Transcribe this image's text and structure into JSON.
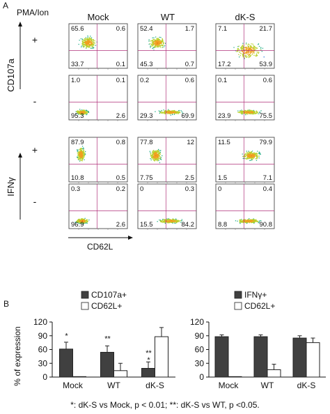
{
  "figure": {
    "panel_a_label": "A",
    "panel_b_label": "B",
    "stim_label": "PMA/Ion",
    "columns": [
      "Mock",
      "WT",
      "dK-S"
    ],
    "row_signs": [
      "+",
      "-",
      "+",
      "-"
    ],
    "y_axis_top": "CD107a",
    "y_axis_bottom": "IFNγ",
    "x_axis": "CD62L",
    "footnote": "*: dK-S vs Mock, p < 0.01; **: dK-S vs WT, p <0.05."
  },
  "flow_panels": [
    [
      {
        "ul": "65.6",
        "ur": "0.6",
        "ll": "33.7",
        "lr": "0.1",
        "pattern": "cd107_hi"
      },
      {
        "ul": "52.4",
        "ur": "1.7",
        "ll": "45.3",
        "lr": "0.7",
        "pattern": "cd107_hi"
      },
      {
        "ul": "7.1",
        "ur": "21.7",
        "ll": "17.2",
        "lr": "53.9",
        "pattern": "spread"
      }
    ],
    [
      {
        "ul": "1.0",
        "ur": "0.1",
        "ll": "95.3",
        "lr": "2.6",
        "pattern": "neg_low"
      },
      {
        "ul": "0.2",
        "ur": "0.6",
        "ll": "29.3",
        "lr": "69.9",
        "pattern": "neg_right"
      },
      {
        "ul": "0.1",
        "ur": "0.6",
        "ll": "23.9",
        "lr": "75.5",
        "pattern": "neg_right"
      }
    ],
    [
      {
        "ul": "87.9",
        "ur": "0.8",
        "ll": "10.8",
        "lr": "0.5",
        "pattern": "ifn_hi"
      },
      {
        "ul": "77.8",
        "ur": "12",
        "ll": "7.75",
        "lr": "2.5",
        "pattern": "ifn_mid"
      },
      {
        "ul": "11.5",
        "ur": "79.9",
        "ll": "1.5",
        "lr": "7.1",
        "pattern": "ifn_right"
      }
    ],
    [
      {
        "ul": "0.3",
        "ur": "0.2",
        "ll": "96.9",
        "lr": "2.6",
        "pattern": "neg_low"
      },
      {
        "ul": "0",
        "ur": "0.3",
        "ll": "15.5",
        "lr": "84.2",
        "pattern": "neg_right"
      },
      {
        "ul": "0",
        "ur": "0.4",
        "ll": "8.8",
        "lr": "90.8",
        "pattern": "neg_right"
      }
    ]
  ],
  "chart_data": [
    {
      "type": "bar",
      "categories": [
        "Mock",
        "WT",
        "dK-S"
      ],
      "ylabel": "% of expression",
      "ylim": [
        0,
        120
      ],
      "yticks": [
        "0",
        "30",
        "60",
        "90",
        "120"
      ],
      "series": [
        {
          "name": "CD107a+",
          "values": [
            61,
            54,
            19
          ],
          "errors": [
            15,
            14,
            14
          ],
          "color": "#404040"
        },
        {
          "name": "CD62L+",
          "values": [
            1,
            14,
            88
          ],
          "errors": [
            0,
            16,
            20
          ],
          "color": "#ffffff"
        }
      ],
      "annotations": [
        "*",
        "**",
        "**",
        "*"
      ]
    },
    {
      "type": "bar",
      "categories": [
        "Mock",
        "WT",
        "dK-S"
      ],
      "ylim": [
        0,
        120
      ],
      "yticks": [
        "0",
        "30",
        "60",
        "90",
        "120"
      ],
      "series": [
        {
          "name": "IFNγ+",
          "values": [
            88,
            88,
            85
          ],
          "errors": [
            4,
            4,
            5
          ],
          "color": "#404040"
        },
        {
          "name": "CD62L+",
          "values": [
            1,
            16,
            75
          ],
          "errors": [
            0,
            12,
            10
          ],
          "color": "#ffffff"
        }
      ]
    }
  ]
}
